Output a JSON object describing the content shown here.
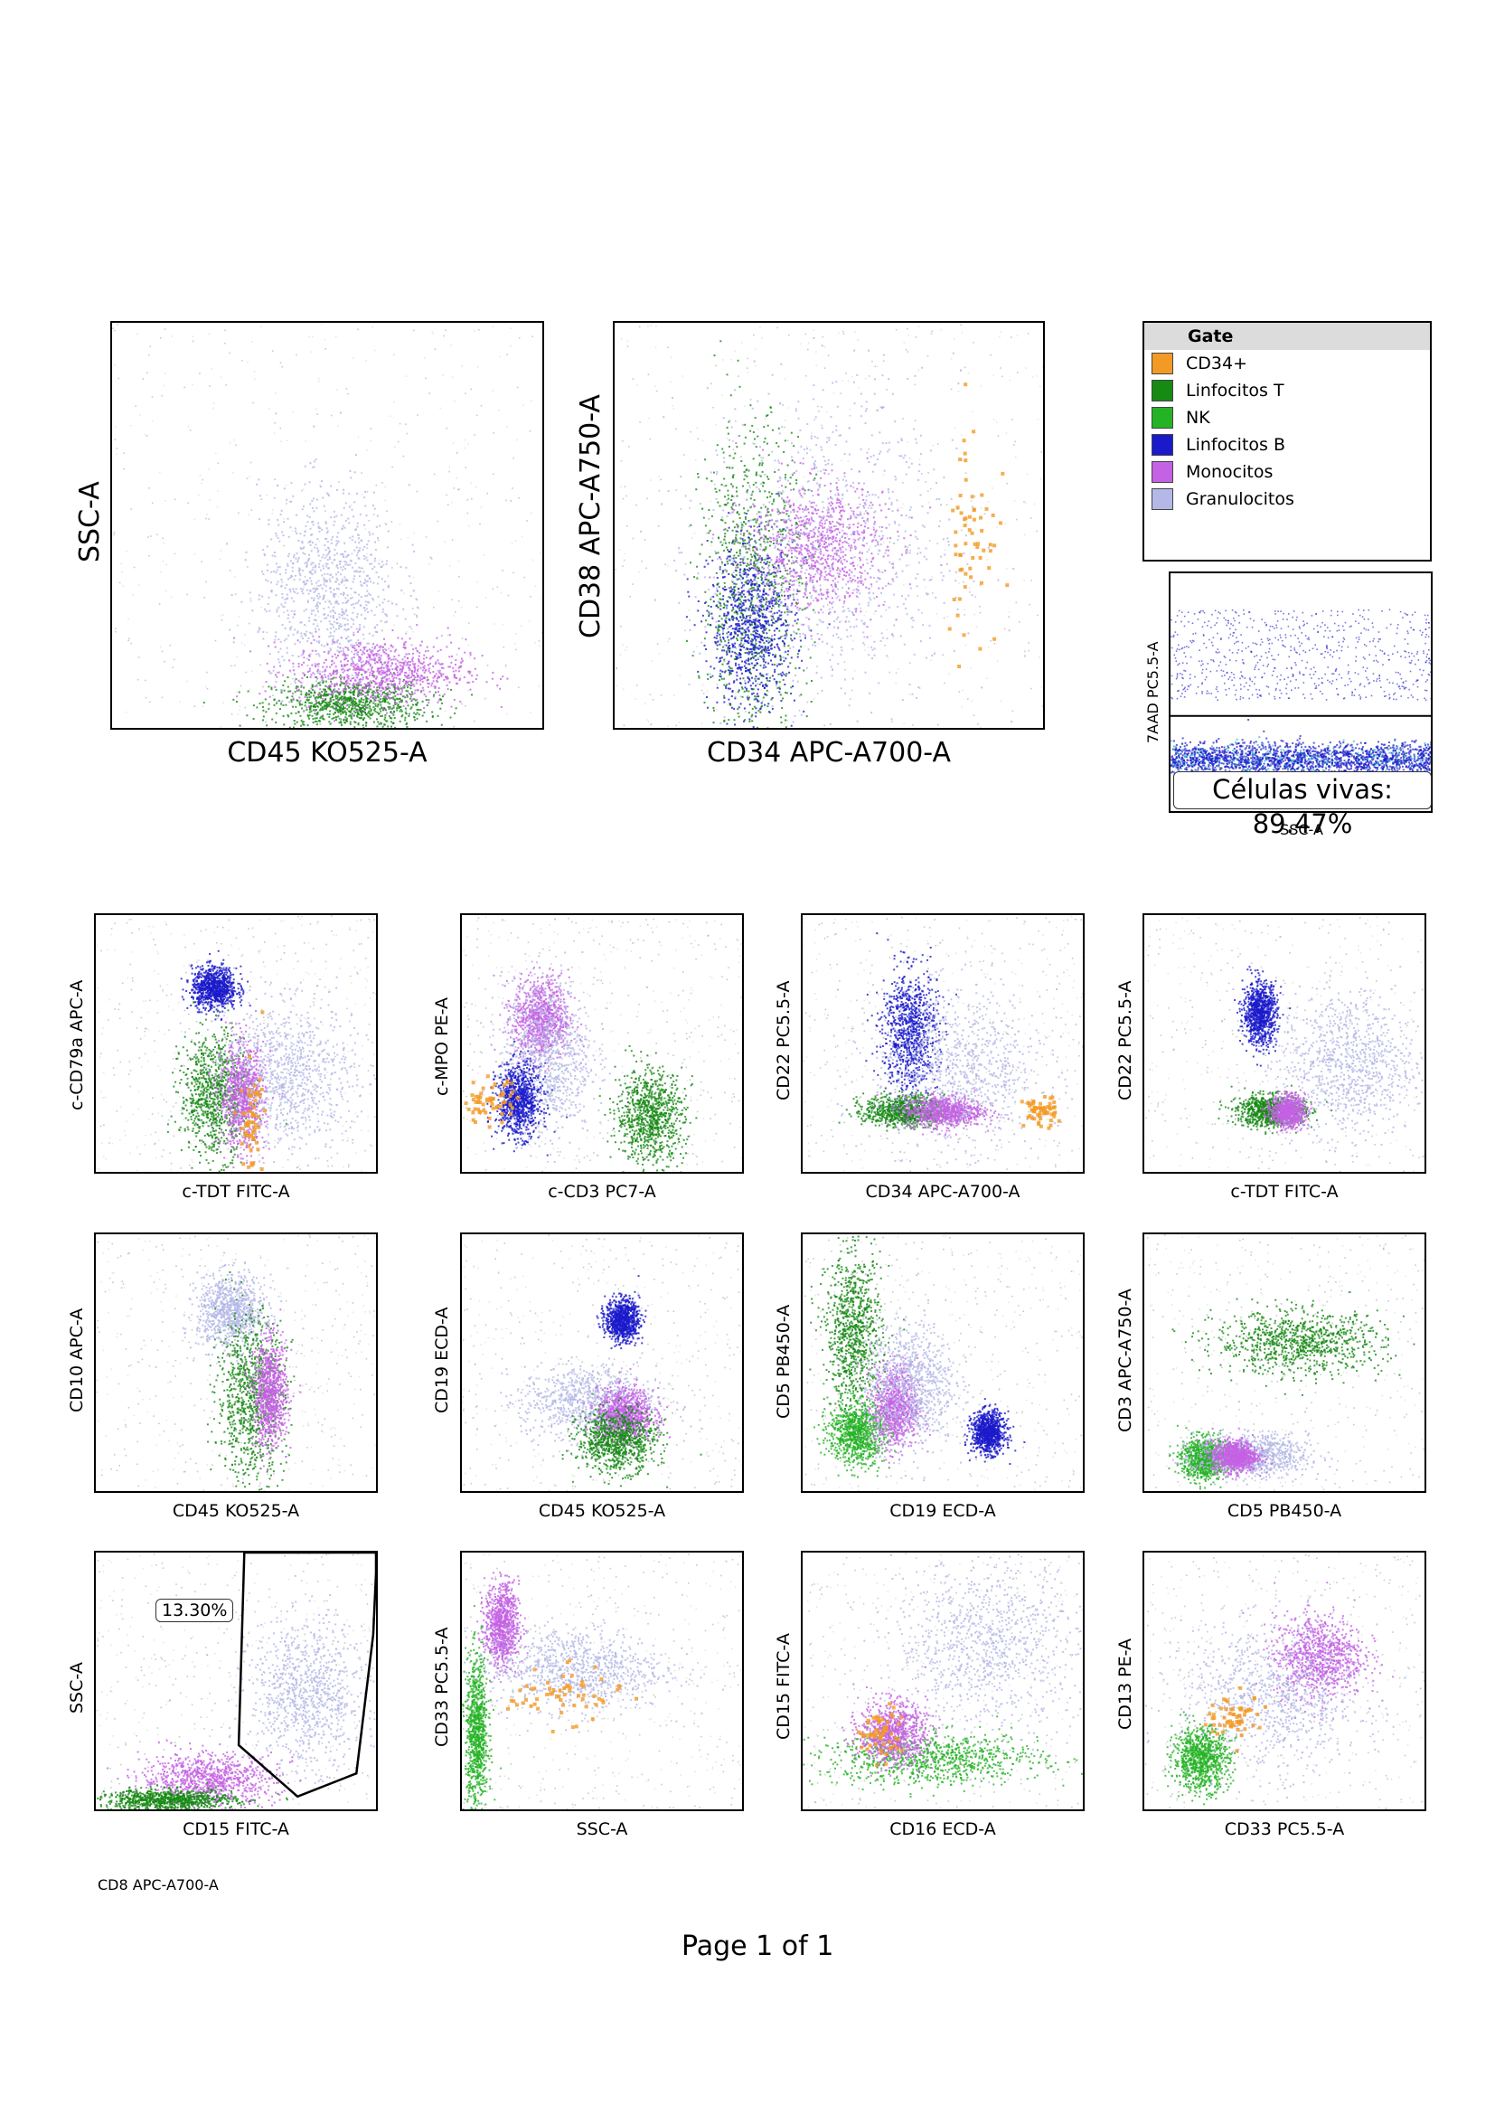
{
  "legend": {
    "title": "Gate",
    "items": [
      {
        "label": "CD34+",
        "color": "#f39a26"
      },
      {
        "label": "Linfocitos T",
        "color": "#178a14"
      },
      {
        "label": "NK",
        "color": "#24b324"
      },
      {
        "label": "Linfocitos B",
        "color": "#1a1acb"
      },
      {
        "label": "Monocitos",
        "color": "#c462e3"
      },
      {
        "label": "Granulocitos",
        "color": "#b4b8e6"
      }
    ]
  },
  "viability": {
    "label": "Células vivas: 89.47%",
    "xlabel": "SSC-A",
    "ylabel": "7AAD PC5.5-A"
  },
  "gate_label": "13.30%",
  "footer": {
    "left_label": "CD8 APC-A700-A",
    "page": "Page 1 of 1"
  },
  "chart_data": [
    {
      "type": "scatter",
      "xlabel": "CD45 KO525-A",
      "ylabel": "SSC-A",
      "populations": [
        {
          "name": "Linfocitos T",
          "cx": 0.55,
          "cy": 0.06,
          "sx": 0.09,
          "sy": 0.03
        },
        {
          "name": "Monocitos",
          "cx": 0.62,
          "cy": 0.14,
          "sx": 0.1,
          "sy": 0.04
        },
        {
          "name": "Granulocitos",
          "cx": 0.5,
          "cy": 0.35,
          "sx": 0.08,
          "sy": 0.12
        }
      ]
    },
    {
      "type": "scatter",
      "xlabel": "CD34 APC-A700-A",
      "ylabel": "CD38 APC-A750-A",
      "populations": [
        {
          "name": "Linfocitos T",
          "cx": 0.32,
          "cy": 0.35,
          "sx": 0.06,
          "sy": 0.2
        },
        {
          "name": "Linfocitos B",
          "cx": 0.32,
          "cy": 0.25,
          "sx": 0.05,
          "sy": 0.1
        },
        {
          "name": "Monocitos",
          "cx": 0.47,
          "cy": 0.45,
          "sx": 0.08,
          "sy": 0.08
        },
        {
          "name": "Granulocitos",
          "cx": 0.5,
          "cy": 0.45,
          "sx": 0.15,
          "sy": 0.2
        },
        {
          "name": "CD34+",
          "cx": 0.83,
          "cy": 0.48,
          "sx": 0.03,
          "sy": 0.15
        }
      ]
    },
    {
      "type": "scatter",
      "xlabel": "c-TDT FITC-A",
      "ylabel": "c-CD79a APC-A",
      "populations": [
        {
          "name": "Linfocitos B",
          "cx": 0.42,
          "cy": 0.72,
          "sx": 0.04,
          "sy": 0.04
        },
        {
          "name": "Linfocitos T",
          "cx": 0.42,
          "cy": 0.3,
          "sx": 0.06,
          "sy": 0.12
        },
        {
          "name": "Monocitos",
          "cx": 0.52,
          "cy": 0.3,
          "sx": 0.04,
          "sy": 0.1
        },
        {
          "name": "Granulocitos",
          "cx": 0.68,
          "cy": 0.38,
          "sx": 0.12,
          "sy": 0.14
        },
        {
          "name": "CD34+",
          "cx": 0.55,
          "cy": 0.2,
          "sx": 0.02,
          "sy": 0.1
        }
      ]
    },
    {
      "type": "scatter",
      "xlabel": "c-CD3 PC7-A",
      "ylabel": "c-MPO PE-A",
      "populations": [
        {
          "name": "Monocitos",
          "cx": 0.28,
          "cy": 0.6,
          "sx": 0.05,
          "sy": 0.08
        },
        {
          "name": "Granulocitos",
          "cx": 0.3,
          "cy": 0.45,
          "sx": 0.08,
          "sy": 0.15
        },
        {
          "name": "Linfocitos B",
          "cx": 0.2,
          "cy": 0.28,
          "sx": 0.04,
          "sy": 0.07
        },
        {
          "name": "Linfocitos T",
          "cx": 0.67,
          "cy": 0.22,
          "sx": 0.06,
          "sy": 0.09
        },
        {
          "name": "CD34+",
          "cx": 0.09,
          "cy": 0.28,
          "sx": 0.05,
          "sy": 0.04
        }
      ]
    },
    {
      "type": "scatter",
      "xlabel": "CD34 APC-A700-A",
      "ylabel": "CD22 PC5.5-A",
      "populations": [
        {
          "name": "Linfocitos B",
          "cx": 0.38,
          "cy": 0.55,
          "sx": 0.05,
          "sy": 0.12
        },
        {
          "name": "Linfocitos T",
          "cx": 0.36,
          "cy": 0.24,
          "sx": 0.07,
          "sy": 0.03
        },
        {
          "name": "Monocitos",
          "cx": 0.5,
          "cy": 0.24,
          "sx": 0.07,
          "sy": 0.03
        },
        {
          "name": "Granulocitos",
          "cx": 0.55,
          "cy": 0.4,
          "sx": 0.15,
          "sy": 0.15
        },
        {
          "name": "CD34+",
          "cx": 0.84,
          "cy": 0.24,
          "sx": 0.03,
          "sy": 0.03
        }
      ]
    },
    {
      "type": "scatter",
      "xlabel": "c-TDT FITC-A",
      "ylabel": "CD22 PC5.5-A",
      "populations": [
        {
          "name": "Linfocitos B",
          "cx": 0.41,
          "cy": 0.62,
          "sx": 0.03,
          "sy": 0.06
        },
        {
          "name": "Linfocitos T",
          "cx": 0.45,
          "cy": 0.24,
          "sx": 0.06,
          "sy": 0.03
        },
        {
          "name": "Monocitos",
          "cx": 0.51,
          "cy": 0.24,
          "sx": 0.03,
          "sy": 0.03
        },
        {
          "name": "Granulocitos",
          "cx": 0.72,
          "cy": 0.42,
          "sx": 0.12,
          "sy": 0.14
        }
      ]
    },
    {
      "type": "scatter",
      "xlabel": "CD45 KO525-A",
      "ylabel": "CD10 APC-A",
      "populations": [
        {
          "name": "Granulocitos",
          "cx": 0.48,
          "cy": 0.7,
          "sx": 0.06,
          "sy": 0.07
        },
        {
          "name": "Linfocitos T",
          "cx": 0.55,
          "cy": 0.37,
          "sx": 0.06,
          "sy": 0.16
        },
        {
          "name": "Monocitos",
          "cx": 0.62,
          "cy": 0.38,
          "sx": 0.03,
          "sy": 0.1
        }
      ]
    },
    {
      "type": "scatter",
      "xlabel": "CD45 KO525-A",
      "ylabel": "CD19 ECD-A",
      "populations": [
        {
          "name": "Linfocitos B",
          "cx": 0.57,
          "cy": 0.67,
          "sx": 0.03,
          "sy": 0.04
        },
        {
          "name": "Granulocitos",
          "cx": 0.45,
          "cy": 0.35,
          "sx": 0.12,
          "sy": 0.07
        },
        {
          "name": "Monocitos",
          "cx": 0.58,
          "cy": 0.3,
          "sx": 0.05,
          "sy": 0.05
        },
        {
          "name": "Linfocitos T",
          "cx": 0.55,
          "cy": 0.2,
          "sx": 0.07,
          "sy": 0.06
        }
      ]
    },
    {
      "type": "scatter",
      "xlabel": "CD19 ECD-A",
      "ylabel": "CD5 PB450-A",
      "populations": [
        {
          "name": "Linfocitos T",
          "cx": 0.18,
          "cy": 0.62,
          "sx": 0.05,
          "sy": 0.15
        },
        {
          "name": "NK",
          "cx": 0.19,
          "cy": 0.23,
          "sx": 0.05,
          "sy": 0.06
        },
        {
          "name": "Monocitos",
          "cx": 0.33,
          "cy": 0.33,
          "sx": 0.04,
          "sy": 0.08
        },
        {
          "name": "Granulocitos",
          "cx": 0.38,
          "cy": 0.42,
          "sx": 0.08,
          "sy": 0.12
        },
        {
          "name": "Linfocitos B",
          "cx": 0.66,
          "cy": 0.23,
          "sx": 0.03,
          "sy": 0.04
        }
      ]
    },
    {
      "type": "scatter",
      "xlabel": "CD5 PB450-A",
      "ylabel": "CD3 APC-A750-A",
      "populations": [
        {
          "name": "Linfocitos T",
          "cx": 0.55,
          "cy": 0.58,
          "sx": 0.15,
          "sy": 0.06
        },
        {
          "name": "NK",
          "cx": 0.21,
          "cy": 0.13,
          "sx": 0.04,
          "sy": 0.04
        },
        {
          "name": "Granulocitos",
          "cx": 0.38,
          "cy": 0.14,
          "sx": 0.1,
          "sy": 0.04
        },
        {
          "name": "Monocitos",
          "cx": 0.32,
          "cy": 0.14,
          "sx": 0.04,
          "sy": 0.03
        }
      ]
    },
    {
      "type": "scatter",
      "xlabel": "CD15 FITC-A",
      "ylabel": "SSC-A",
      "populations": [
        {
          "name": "Granulocitos",
          "cx": 0.75,
          "cy": 0.45,
          "sx": 0.1,
          "sy": 0.14
        },
        {
          "name": "Monocitos",
          "cx": 0.4,
          "cy": 0.12,
          "sx": 0.12,
          "sy": 0.05
        },
        {
          "name": "Linfocitos T",
          "cx": 0.25,
          "cy": 0.04,
          "sx": 0.12,
          "sy": 0.02
        }
      ]
    },
    {
      "type": "scatter",
      "xlabel": "SSC-A",
      "ylabel": "CD33 PC5.5-A",
      "populations": [
        {
          "name": "Monocitos",
          "cx": 0.14,
          "cy": 0.72,
          "sx": 0.03,
          "sy": 0.08
        },
        {
          "name": "Granulocitos",
          "cx": 0.4,
          "cy": 0.55,
          "sx": 0.16,
          "sy": 0.08
        },
        {
          "name": "NK",
          "cx": 0.05,
          "cy": 0.3,
          "sx": 0.02,
          "sy": 0.15
        },
        {
          "name": "CD34+",
          "cx": 0.36,
          "cy": 0.45,
          "sx": 0.1,
          "sy": 0.05
        }
      ]
    },
    {
      "type": "scatter",
      "xlabel": "CD16 ECD-A",
      "ylabel": "CD15 FITC-A",
      "populations": [
        {
          "name": "Granulocitos",
          "cx": 0.65,
          "cy": 0.65,
          "sx": 0.16,
          "sy": 0.16
        },
        {
          "name": "NK",
          "cx": 0.45,
          "cy": 0.2,
          "sx": 0.2,
          "sy": 0.05
        },
        {
          "name": "Monocitos",
          "cx": 0.32,
          "cy": 0.3,
          "sx": 0.06,
          "sy": 0.06
        },
        {
          "name": "CD34+",
          "cx": 0.27,
          "cy": 0.3,
          "sx": 0.04,
          "sy": 0.05
        }
      ]
    },
    {
      "type": "scatter",
      "xlabel": "CD33 PC5.5-A",
      "ylabel": "CD13 PE-A",
      "populations": [
        {
          "name": "Monocitos",
          "cx": 0.62,
          "cy": 0.6,
          "sx": 0.08,
          "sy": 0.08
        },
        {
          "name": "Granulocitos",
          "cx": 0.45,
          "cy": 0.43,
          "sx": 0.16,
          "sy": 0.14
        },
        {
          "name": "NK",
          "cx": 0.2,
          "cy": 0.2,
          "sx": 0.05,
          "sy": 0.06
        },
        {
          "name": "CD34+",
          "cx": 0.32,
          "cy": 0.37,
          "sx": 0.05,
          "sy": 0.04
        }
      ]
    }
  ]
}
